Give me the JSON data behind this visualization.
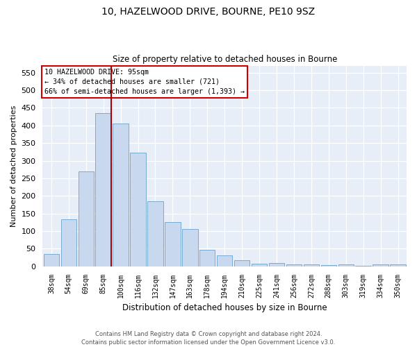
{
  "title": "10, HAZELWOOD DRIVE, BOURNE, PE10 9SZ",
  "subtitle": "Size of property relative to detached houses in Bourne",
  "xlabel": "Distribution of detached houses by size in Bourne",
  "ylabel": "Number of detached properties",
  "categories": [
    "38sqm",
    "54sqm",
    "69sqm",
    "85sqm",
    "100sqm",
    "116sqm",
    "132sqm",
    "147sqm",
    "163sqm",
    "178sqm",
    "194sqm",
    "210sqm",
    "225sqm",
    "241sqm",
    "256sqm",
    "272sqm",
    "288sqm",
    "303sqm",
    "319sqm",
    "334sqm",
    "350sqm"
  ],
  "values": [
    35,
    133,
    270,
    435,
    405,
    323,
    184,
    125,
    105,
    46,
    30,
    18,
    8,
    10,
    5,
    5,
    4,
    5,
    2,
    6,
    6
  ],
  "bar_color": "#c8d8ef",
  "bar_edgecolor": "#7aaad0",
  "vline_color": "#aa0000",
  "ylim": [
    0,
    570
  ],
  "yticks": [
    0,
    50,
    100,
    150,
    200,
    250,
    300,
    350,
    400,
    450,
    500,
    550
  ],
  "annotation_title": "10 HAZELWOOD DRIVE: 95sqm",
  "annotation_line1": "← 34% of detached houses are smaller (721)",
  "annotation_line2": "66% of semi-detached houses are larger (1,393) →",
  "annotation_box_color": "#cc0000",
  "background_color": "#e8eef8",
  "footer1": "Contains HM Land Registry data © Crown copyright and database right 2024.",
  "footer2": "Contains public sector information licensed under the Open Government Licence v3.0."
}
